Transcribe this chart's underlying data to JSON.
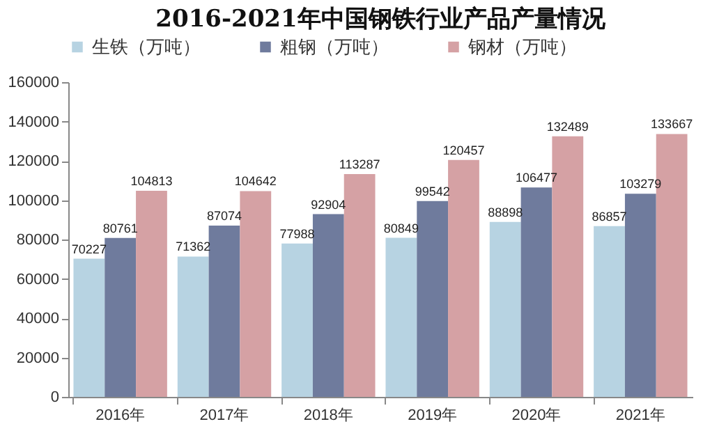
{
  "chart_data": {
    "type": "bar",
    "title": "2016-2021年中国钢铁行业产品产量情况",
    "categories": [
      "2016年",
      "2017年",
      "2018年",
      "2019年",
      "2020年",
      "2021年"
    ],
    "series": [
      {
        "name": "生铁（万吨）",
        "color": "#b7d3e2",
        "values": [
          70227,
          71362,
          77988,
          80849,
          88898,
          86857
        ]
      },
      {
        "name": "粗钢（万吨）",
        "color": "#6f7b9d",
        "values": [
          80761,
          87074,
          92904,
          99542,
          106477,
          103279
        ]
      },
      {
        "name": "钢材（万吨）",
        "color": "#d5a1a4",
        "values": [
          104813,
          104642,
          113287,
          120457,
          132489,
          133667
        ]
      }
    ],
    "ylim": [
      0,
      160000
    ],
    "yticks": [
      0,
      20000,
      40000,
      60000,
      80000,
      100000,
      120000,
      140000,
      160000
    ],
    "grid": false,
    "legend": "top",
    "data_labels": true
  }
}
